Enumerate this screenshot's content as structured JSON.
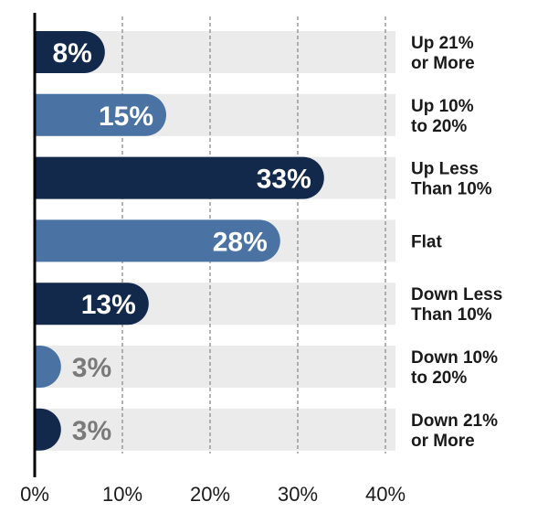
{
  "chart_data": {
    "type": "bar",
    "orientation": "horizontal",
    "title": "",
    "xlabel": "",
    "ylabel": "",
    "xlim": [
      0,
      42
    ],
    "grid": true,
    "legend": "none",
    "categories": [
      [
        "Up 21%",
        "or More"
      ],
      [
        "Up 10%",
        "to 20%"
      ],
      [
        "Up Less",
        "Than 10%"
      ],
      [
        "Flat"
      ],
      [
        "Down Less",
        "Than 10%"
      ],
      [
        "Down 10%",
        "to 20%"
      ],
      [
        "Down 21%",
        "or More"
      ]
    ],
    "values": [
      8,
      15,
      33,
      28,
      13,
      3,
      3
    ],
    "value_labels": [
      "8%",
      "15%",
      "33%",
      "28%",
      "13%",
      "3%",
      "3%"
    ],
    "x_ticks": [
      0,
      10,
      20,
      30,
      40
    ],
    "x_tick_labels": [
      "0%",
      "10%",
      "20%",
      "30%",
      "40%"
    ],
    "colors": {
      "dark_bar": "#13294b",
      "light_bar": "#4a72a3",
      "track": "#ebebeb",
      "axis": "#000000",
      "grid": "#8c8c8c",
      "label_inside": "#ffffff",
      "label_outside": "#7a7a7a"
    },
    "bar_colors": [
      "dark_bar",
      "light_bar",
      "dark_bar",
      "light_bar",
      "dark_bar",
      "light_bar",
      "dark_bar"
    ]
  }
}
